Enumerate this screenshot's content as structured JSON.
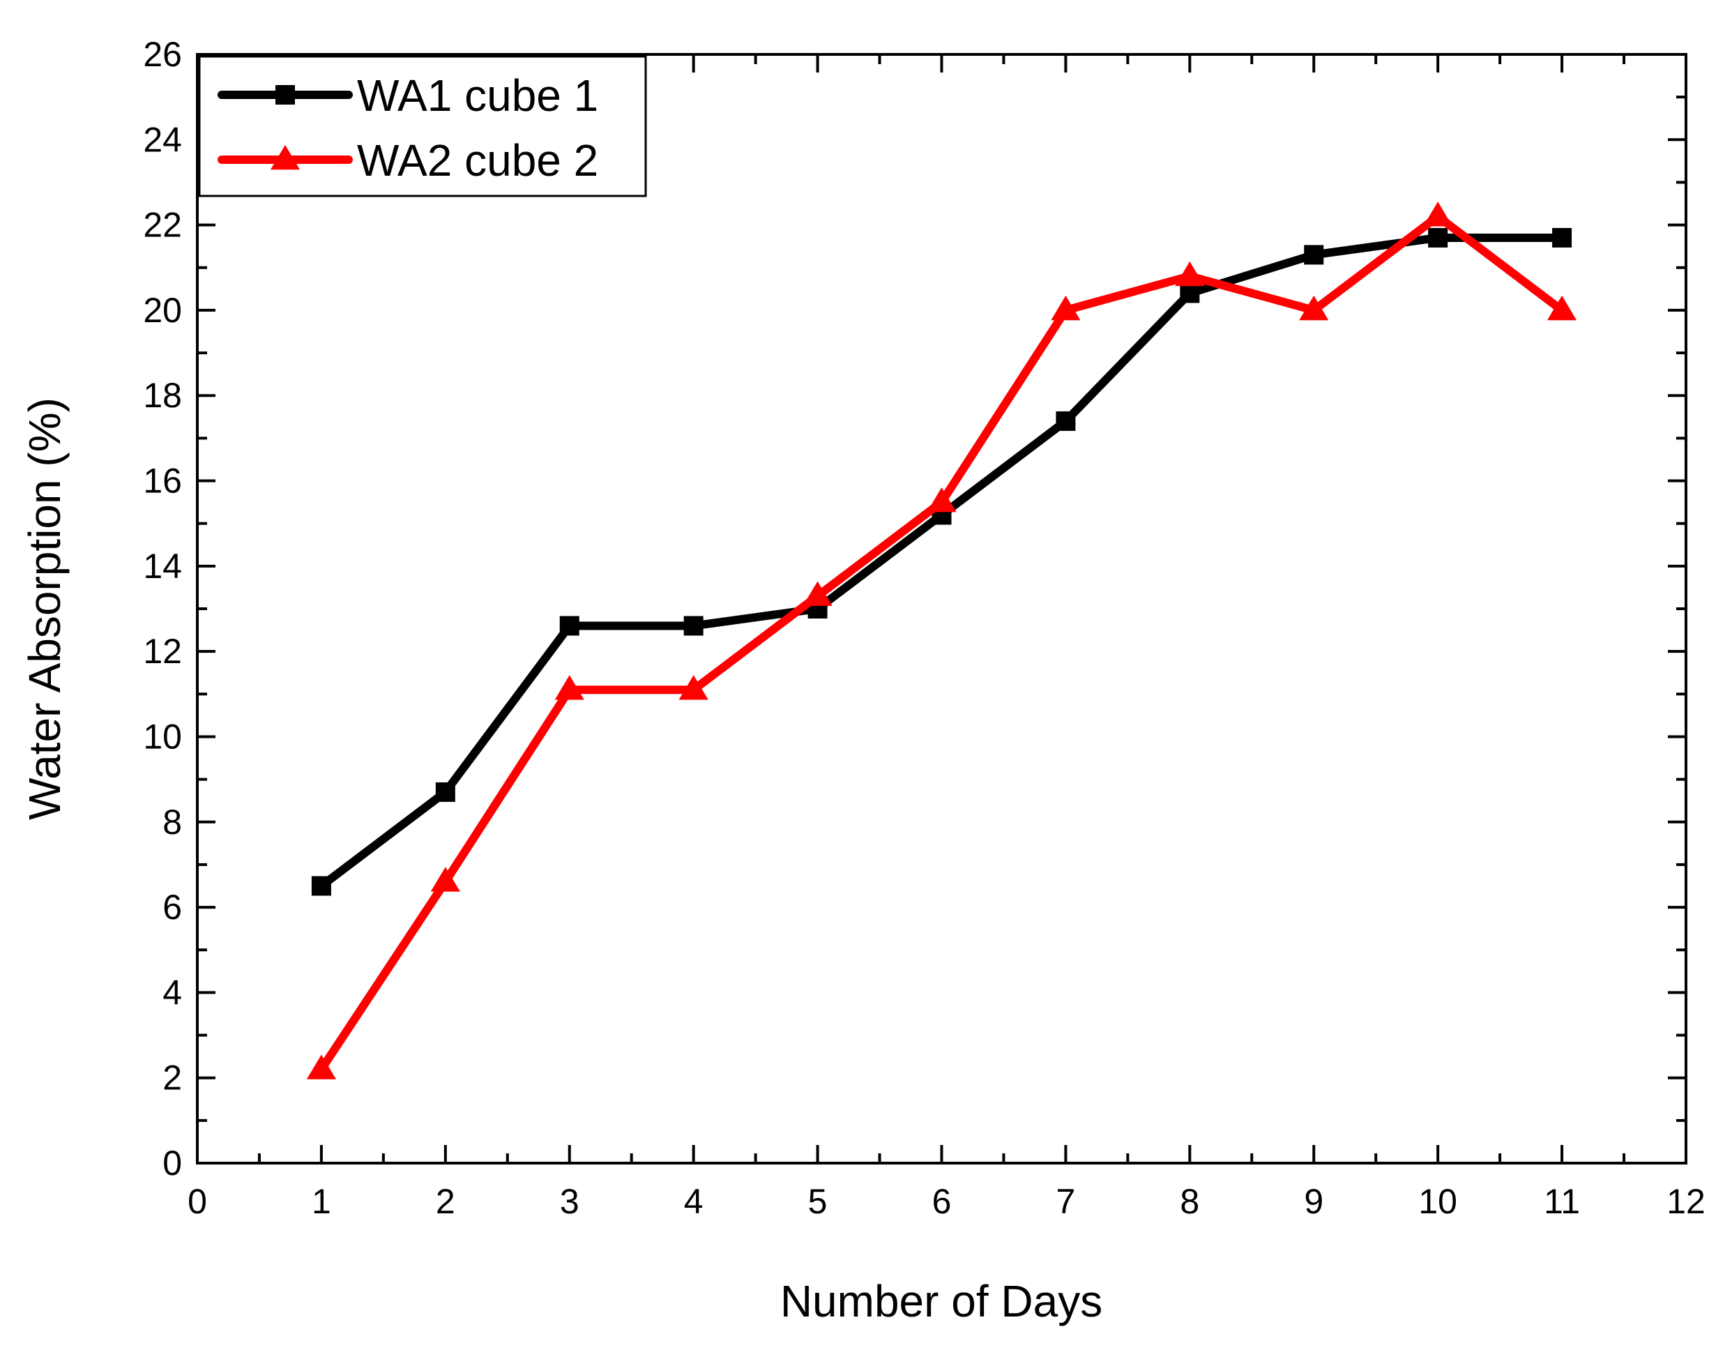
{
  "chart_data": {
    "type": "line",
    "title": "",
    "xlabel": "Number of Days",
    "ylabel": "Water Absorption  (%)",
    "xlim": [
      0,
      12
    ],
    "ylim": [
      0,
      26
    ],
    "x_ticks": [
      "0",
      "1",
      "2",
      "3",
      "4",
      "5",
      "6",
      "7",
      "8",
      "9",
      "10",
      "11",
      "12"
    ],
    "y_ticks": [
      "0",
      "2",
      "4",
      "6",
      "8",
      "10",
      "12",
      "14",
      "16",
      "18",
      "20",
      "22",
      "24",
      "26"
    ],
    "grid": false,
    "legend_position": "top-left",
    "series": [
      {
        "name": "WA1 cube 1",
        "color": "#000000",
        "marker": "square",
        "x": [
          1,
          2,
          3,
          4,
          5,
          6,
          7,
          8,
          9,
          10,
          11
        ],
        "y": [
          6.5,
          8.7,
          12.6,
          12.6,
          13.0,
          15.2,
          17.4,
          20.4,
          21.3,
          21.7,
          21.7
        ]
      },
      {
        "name": "WA2 cube 2",
        "color": "#ff0000",
        "marker": "triangle",
        "x": [
          1,
          2,
          3,
          4,
          5,
          6,
          7,
          8,
          9,
          10,
          11
        ],
        "y": [
          2.2,
          6.6,
          11.1,
          11.1,
          13.3,
          15.5,
          20.0,
          20.8,
          20.0,
          22.2,
          20.0
        ]
      }
    ]
  }
}
